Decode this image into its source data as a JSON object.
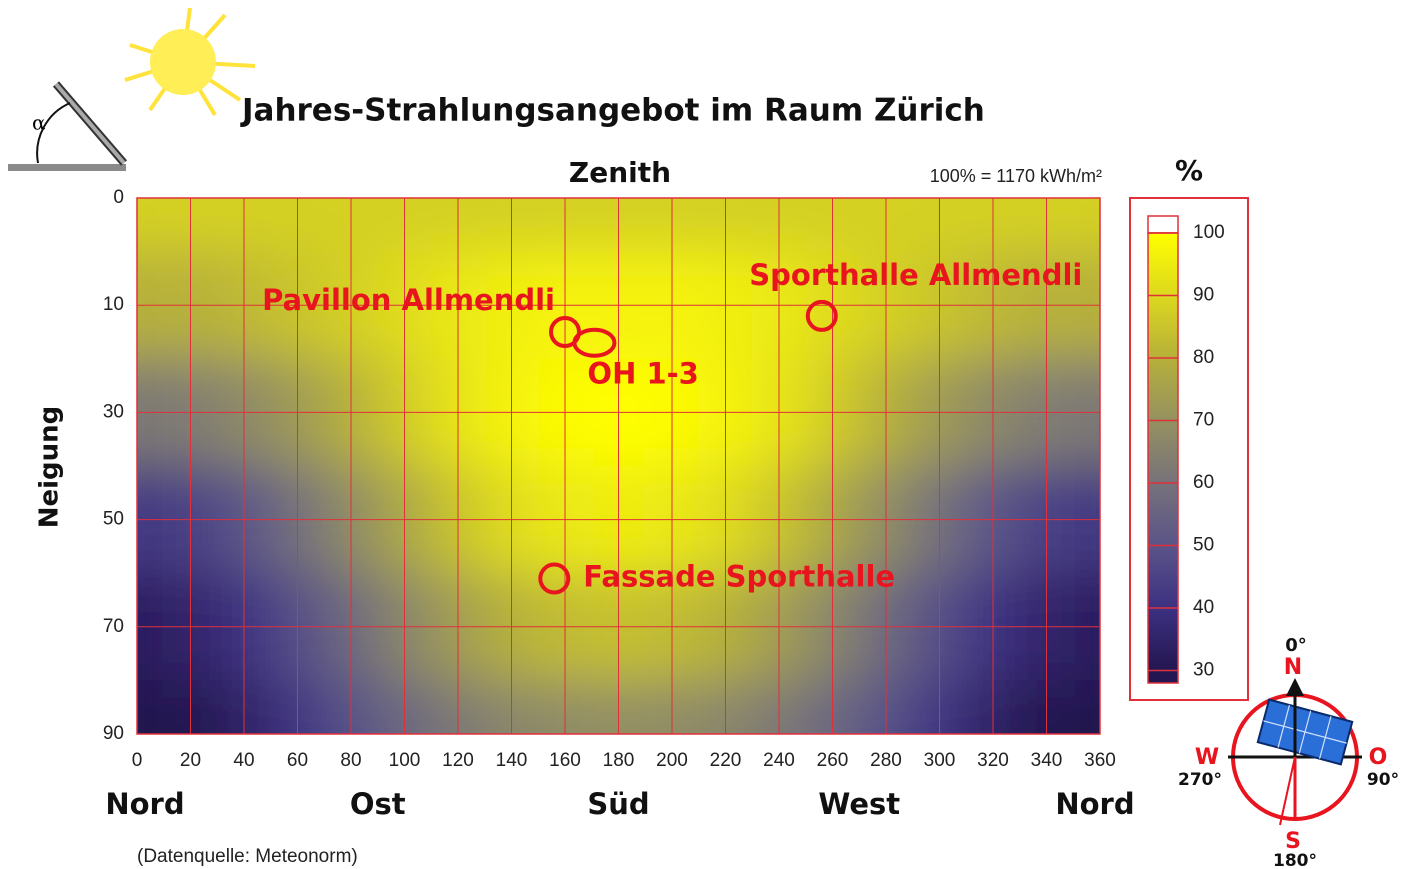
{
  "chart_data": {
    "type": "heatmap",
    "title": "Jahres-Strahlungsangebot im Raum Zürich",
    "subtitle": "Zenith",
    "note": "100% = 1170 kWh/m²",
    "ylabel": "Neigung",
    "source": "(Datenquelle: Meteonorm)",
    "x": [
      0,
      20,
      40,
      60,
      80,
      100,
      120,
      140,
      160,
      180,
      200,
      220,
      240,
      260,
      280,
      300,
      320,
      340,
      360
    ],
    "y": [
      0,
      10,
      30,
      50,
      70,
      90
    ],
    "values": [
      [
        88,
        88,
        88,
        88,
        88,
        88,
        88,
        88,
        88,
        88,
        88,
        88,
        88,
        88,
        88,
        88,
        88,
        88,
        88
      ],
      [
        80,
        80,
        82,
        85,
        88,
        91,
        94,
        96,
        97,
        97,
        97,
        96,
        94,
        91,
        88,
        85,
        82,
        80,
        80
      ],
      [
        62,
        63,
        67,
        73,
        80,
        87,
        93,
        97,
        99,
        100,
        99,
        97,
        93,
        87,
        80,
        73,
        67,
        63,
        62
      ],
      [
        42,
        44,
        50,
        59,
        68,
        77,
        85,
        91,
        94,
        95,
        94,
        91,
        85,
        77,
        68,
        59,
        50,
        44,
        42
      ],
      [
        33,
        35,
        40,
        48,
        57,
        66,
        74,
        80,
        83,
        84,
        83,
        80,
        74,
        66,
        57,
        48,
        40,
        35,
        33
      ],
      [
        28,
        30,
        34,
        41,
        49,
        56,
        62,
        66,
        68,
        69,
        68,
        66,
        62,
        56,
        49,
        41,
        34,
        30,
        28
      ]
    ],
    "xlim": [
      0,
      360
    ],
    "xticks": [
      0,
      20,
      40,
      60,
      80,
      100,
      120,
      140,
      160,
      180,
      200,
      220,
      240,
      260,
      280,
      300,
      320,
      340,
      360
    ],
    "ylim": [
      0,
      90
    ],
    "yticks": [
      0,
      10,
      30,
      50,
      70,
      90
    ],
    "grid": true,
    "grid_color": "#e0303a",
    "colorbar": {
      "title": "%",
      "lim": [
        28,
        100
      ],
      "ticks": [
        30,
        40,
        50,
        60,
        70,
        80,
        90,
        100
      ],
      "colors": [
        "#241650",
        "#3c3182",
        "#5a5488",
        "#77727a",
        "#959160",
        "#b6b03a",
        "#dcd81e",
        "#ffff00"
      ]
    },
    "directions": [
      {
        "label": "Nord",
        "x": 0
      },
      {
        "label": "Ost",
        "x": 90
      },
      {
        "label": "Süd",
        "x": 180
      },
      {
        "label": "West",
        "x": 270
      },
      {
        "label": "Nord",
        "x": 360
      }
    ],
    "markers": [
      {
        "label": "Pavillon Allmendli",
        "x": 160,
        "y": 15
      },
      {
        "label": "OH 1-3",
        "x": 171,
        "y": 17
      },
      {
        "label": "Sporthalle Allmendli",
        "x": 256,
        "y": 12
      },
      {
        "label": "Fassade Sporthalle",
        "x": 156,
        "y": 61
      }
    ],
    "marker_color": "#e8141e"
  },
  "compass": {
    "north_deg": "0°",
    "north": "N",
    "west": "W",
    "west_deg": "270°",
    "east": "O",
    "east_deg": "90°",
    "south": "S",
    "south_deg": "180°"
  }
}
